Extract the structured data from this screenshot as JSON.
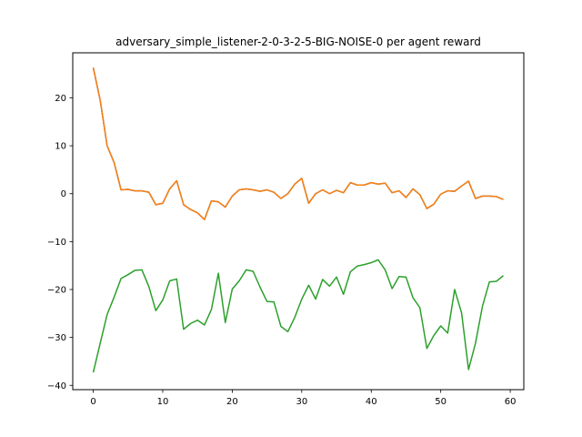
{
  "chart_data": {
    "type": "line",
    "title": "adversary_simple_listener-2-0-3-2-5-BIG-NOISE-0 per agent reward",
    "xlabel": "",
    "ylabel": "",
    "xlim": [
      -2.95,
      61.95
    ],
    "ylim": [
      -40.9,
      29.4
    ],
    "xticks": [
      0,
      10,
      20,
      30,
      40,
      50,
      60
    ],
    "yticks": [
      -40,
      -30,
      -20,
      -10,
      0,
      10,
      20
    ],
    "grid": false,
    "legend": "none",
    "x": [
      0,
      1,
      2,
      3,
      4,
      5,
      6,
      7,
      8,
      9,
      10,
      11,
      12,
      13,
      14,
      15,
      16,
      17,
      18,
      19,
      20,
      21,
      22,
      23,
      24,
      25,
      26,
      27,
      28,
      29,
      30,
      31,
      32,
      33,
      34,
      35,
      36,
      37,
      38,
      39,
      40,
      41,
      42,
      43,
      44,
      45,
      46,
      47,
      48,
      49,
      50,
      51,
      52,
      53,
      54,
      55,
      56,
      57,
      58,
      59
    ],
    "series": [
      {
        "color": "#1f77b4",
        "values": [
          26.3,
          19.5,
          10.0,
          6.5,
          0.8,
          0.9,
          0.6,
          0.6,
          0.3,
          -2.3,
          -2.0,
          1.0,
          2.7,
          -2.3,
          -3.3,
          -4.0,
          -5.4,
          -1.5,
          -1.7,
          -2.8,
          -0.5,
          0.8,
          1.0,
          0.8,
          0.5,
          0.8,
          0.3,
          -1.0,
          0.0,
          2.0,
          3.2,
          -2.0,
          0.0,
          0.8,
          0.0,
          0.7,
          0.2,
          2.3,
          1.8,
          1.8,
          2.3,
          2.0,
          2.2,
          0.2,
          0.6,
          -0.8,
          1.0,
          -0.2,
          -3.1,
          -2.2,
          -0.1,
          0.6,
          0.5,
          1.6,
          2.6,
          -1.0,
          -0.5,
          -0.5,
          -0.6,
          -1.2
        ]
      },
      {
        "color": "#ff7f0e",
        "values": [
          26.3,
          19.5,
          10.0,
          6.5,
          0.8,
          0.9,
          0.6,
          0.6,
          0.3,
          -2.3,
          -2.0,
          1.0,
          2.7,
          -2.3,
          -3.3,
          -4.0,
          -5.4,
          -1.5,
          -1.7,
          -2.8,
          -0.5,
          0.8,
          1.0,
          0.8,
          0.5,
          0.8,
          0.3,
          -1.0,
          0.0,
          2.0,
          3.2,
          -2.0,
          0.0,
          0.8,
          0.0,
          0.7,
          0.2,
          2.3,
          1.8,
          1.8,
          2.3,
          2.0,
          2.2,
          0.2,
          0.6,
          -0.8,
          1.0,
          -0.2,
          -3.1,
          -2.2,
          -0.1,
          0.6,
          0.5,
          1.6,
          2.6,
          -1.0,
          -0.5,
          -0.5,
          -0.6,
          -1.2
        ]
      },
      {
        "color": "#2ca02c",
        "values": [
          -37.3,
          -31.2,
          -25.2,
          -21.6,
          -17.7,
          -16.9,
          -16.0,
          -15.9,
          -19.4,
          -24.4,
          -22.2,
          -18.2,
          -17.8,
          -28.3,
          -27.1,
          -26.4,
          -27.4,
          -24.2,
          -16.6,
          -26.9,
          -19.9,
          -18.2,
          -15.9,
          -16.2,
          -19.5,
          -22.5,
          -22.6,
          -27.7,
          -28.8,
          -25.8,
          -22.0,
          -19.1,
          -22.0,
          -17.9,
          -19.3,
          -17.4,
          -21.0,
          -16.3,
          -15.1,
          -14.8,
          -14.4,
          -13.8,
          -15.9,
          -19.8,
          -17.3,
          -17.4,
          -21.7,
          -23.8,
          -32.3,
          -29.6,
          -27.6,
          -29.1,
          -20.0,
          -24.9,
          -36.7,
          -31.2,
          -23.5,
          -18.4,
          -18.3,
          -17.1
        ]
      }
    ]
  }
}
